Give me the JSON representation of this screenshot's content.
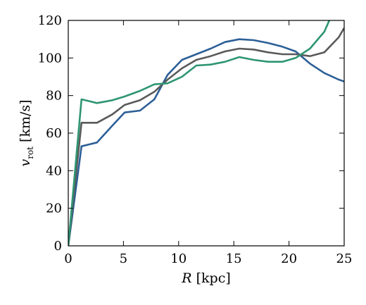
{
  "chart_data": {
    "type": "line",
    "title": "",
    "xlabel": {
      "var": "R",
      "unit": " [kpc]"
    },
    "ylabel": {
      "var": "v",
      "sub": "rot",
      "unit": " [km/s]"
    },
    "xlim": [
      0,
      25
    ],
    "ylim": [
      0,
      120
    ],
    "xticks": [
      0,
      5,
      10,
      15,
      20,
      25
    ],
    "yticks": [
      0,
      20,
      40,
      60,
      80,
      100,
      120
    ],
    "grid": false,
    "legend": "none",
    "series": [
      {
        "color": "#2c5f97",
        "points": [
          [
            0,
            0
          ],
          [
            1.2,
            53
          ],
          [
            2.6,
            55
          ],
          [
            4,
            64
          ],
          [
            5.1,
            71
          ],
          [
            6.5,
            72
          ],
          [
            7.8,
            78
          ],
          [
            9,
            91
          ],
          [
            10.3,
            99
          ],
          [
            11.6,
            102
          ],
          [
            12.9,
            105
          ],
          [
            14.2,
            108.5
          ],
          [
            15.5,
            110
          ],
          [
            16.8,
            109.5
          ],
          [
            18.1,
            108
          ],
          [
            19.4,
            106
          ],
          [
            20.6,
            103.5
          ],
          [
            21.9,
            97
          ],
          [
            23.2,
            92
          ],
          [
            24.5,
            88.5
          ],
          [
            25,
            87.5
          ]
        ]
      },
      {
        "color": "#5a5a5a",
        "points": [
          [
            0,
            0
          ],
          [
            1.2,
            65.5
          ],
          [
            2.6,
            65.5
          ],
          [
            4,
            70
          ],
          [
            5.1,
            75
          ],
          [
            6.5,
            77.5
          ],
          [
            7.8,
            82
          ],
          [
            9,
            88.5
          ],
          [
            10.3,
            94.5
          ],
          [
            11.6,
            99
          ],
          [
            12.9,
            101
          ],
          [
            14.2,
            103.5
          ],
          [
            15.5,
            105
          ],
          [
            16.8,
            104.5
          ],
          [
            18.1,
            103
          ],
          [
            19.4,
            102
          ],
          [
            20.6,
            102
          ],
          [
            21.9,
            101
          ],
          [
            23.2,
            103
          ],
          [
            24.5,
            111
          ],
          [
            25,
            116
          ]
        ]
      },
      {
        "color": "#2e9573",
        "points": [
          [
            0,
            0
          ],
          [
            1.2,
            78
          ],
          [
            2.6,
            76
          ],
          [
            4,
            77.5
          ],
          [
            5.1,
            79.5
          ],
          [
            6.5,
            82.5
          ],
          [
            7.8,
            86
          ],
          [
            9,
            86.5
          ],
          [
            10.3,
            90
          ],
          [
            11.6,
            96
          ],
          [
            12.9,
            96.5
          ],
          [
            14.2,
            98
          ],
          [
            15.5,
            100.5
          ],
          [
            16.8,
            99
          ],
          [
            18.1,
            98
          ],
          [
            19.4,
            98
          ],
          [
            20.6,
            100
          ],
          [
            21.9,
            105
          ],
          [
            23.2,
            114
          ],
          [
            23.8,
            122
          ]
        ]
      }
    ]
  }
}
